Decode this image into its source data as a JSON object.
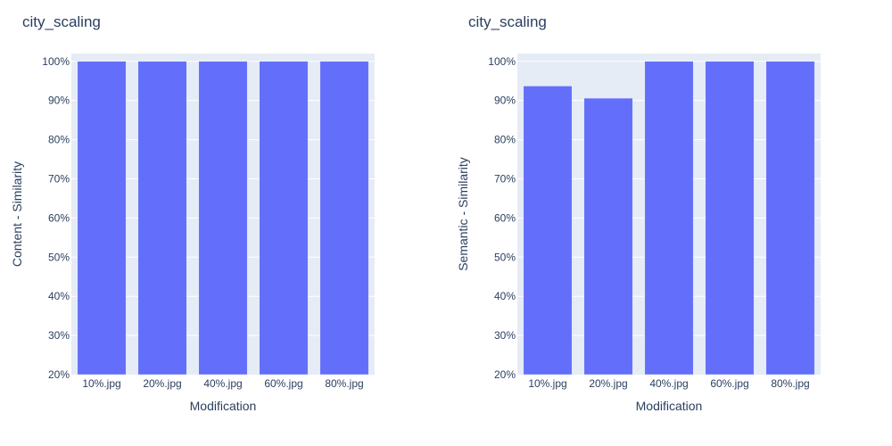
{
  "colors": {
    "plot_bg": "#e5ecf6",
    "grid": "#ffffff",
    "bar": "#636efa",
    "text": "#2a3f5f"
  },
  "chart_data": [
    {
      "type": "bar",
      "title": "city_scaling",
      "xlabel": "Modification",
      "ylabel": "Content - Similarity",
      "categories": [
        "10%.jpg",
        "20%.jpg",
        "40%.jpg",
        "60%.jpg",
        "80%.jpg"
      ],
      "values": [
        1.0,
        1.0,
        1.0,
        1.0,
        1.0
      ],
      "ylim": [
        0.2,
        1.02
      ],
      "yticks": [
        "20%",
        "30%",
        "40%",
        "50%",
        "60%",
        "70%",
        "80%",
        "90%",
        "100%"
      ],
      "grid": true,
      "legend": false
    },
    {
      "type": "bar",
      "title": "city_scaling",
      "xlabel": "Modification",
      "ylabel": "Semantic - Similarity",
      "categories": [
        "10%.jpg",
        "20%.jpg",
        "40%.jpg",
        "60%.jpg",
        "80%.jpg"
      ],
      "values": [
        0.937,
        0.906,
        1.0,
        1.0,
        1.0
      ],
      "ylim": [
        0.2,
        1.02
      ],
      "yticks": [
        "20%",
        "30%",
        "40%",
        "50%",
        "60%",
        "70%",
        "80%",
        "90%",
        "100%"
      ],
      "grid": true,
      "legend": false
    }
  ]
}
